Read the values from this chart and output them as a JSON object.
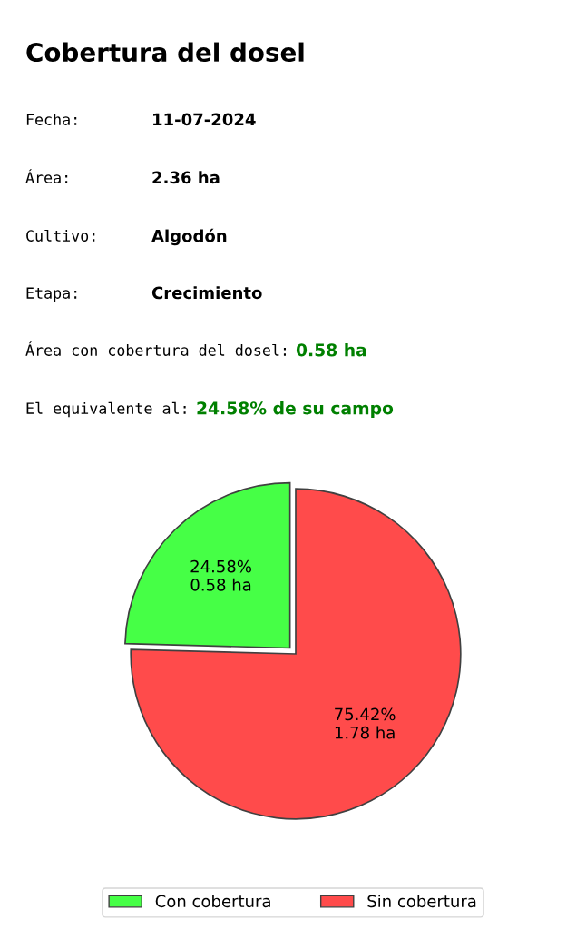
{
  "chart_data": {
    "type": "pie",
    "title": "Cobertura del dosel",
    "annotations": [
      "Fecha:",
      "11-07-2024",
      "Área:",
      "2.36 ha",
      "Cultivo:",
      "Algodón",
      "Etapa:",
      "Crecimiento",
      "Área con cobertura del dosel:",
      "0.58 ha",
      "El equivalente al:",
      "24.58% de su campo"
    ],
    "categories": [
      "Con cobertura",
      "Sin cobertura"
    ],
    "values": [
      24.58,
      75.42
    ],
    "value_labels": [
      "24.58%\n0.58 ha",
      "75.42%\n1.78 ha"
    ],
    "colors": [
      "#46ff46",
      "#ff4b4b"
    ],
    "legend": "bottom"
  }
}
